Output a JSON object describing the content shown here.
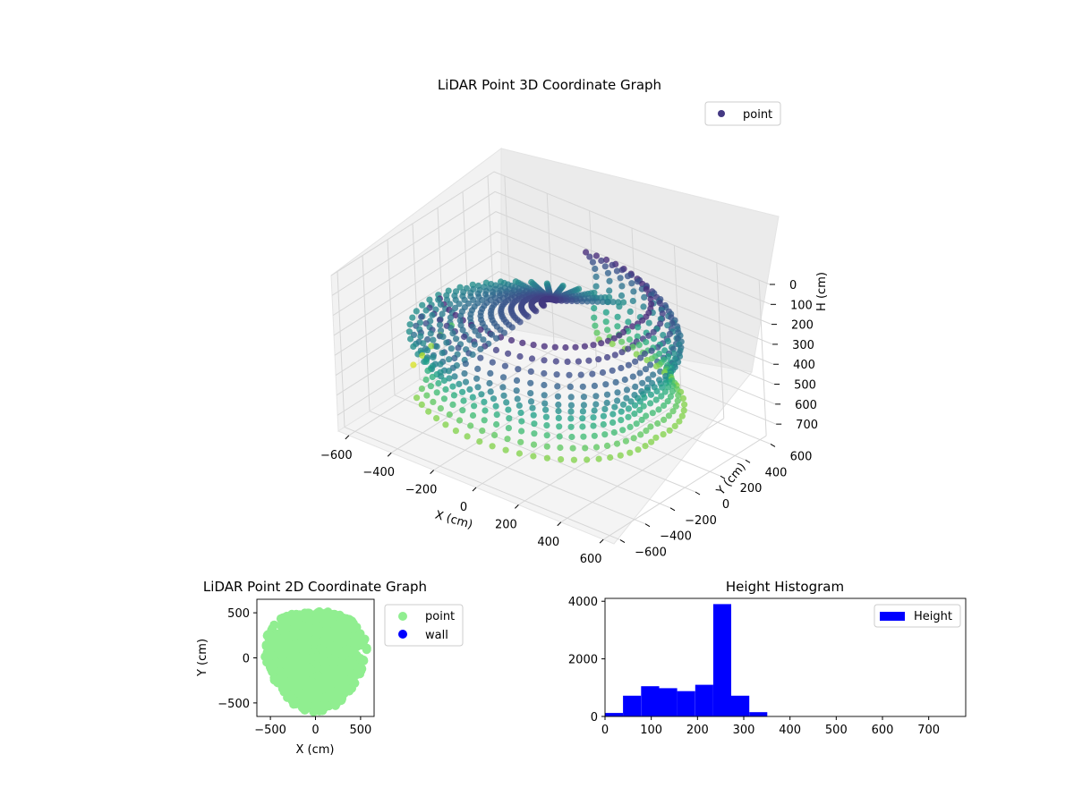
{
  "chart_data": [
    {
      "type": "scatter",
      "projection": "3d",
      "title": "LiDAR Point 3D Coordinate Graph",
      "xlabel": "X (cm)",
      "ylabel": "Y (cm)",
      "zlabel": "H (cm)",
      "xlim": [
        -650,
        650
      ],
      "ylim": [
        -650,
        650
      ],
      "zlim": [
        0,
        780
      ],
      "z_inverted": true,
      "xticks": [
        "−600",
        "−400",
        "−200",
        "0",
        "200",
        "400",
        "600"
      ],
      "yticks": [
        "−600",
        "−400",
        "−200",
        "0",
        "200",
        "400",
        "600"
      ],
      "zticks": [
        "0",
        "100",
        "200",
        "300",
        "400",
        "500",
        "600",
        "700"
      ],
      "grid": true,
      "legend": {
        "placement": "upper-right",
        "entries": [
          "point"
        ]
      },
      "colormap": "viridis",
      "series": [
        {
          "name": "point",
          "color": "#443983",
          "description_values": {
            "rings": 42,
            "ring_radius_range": [
              450,
              620
            ],
            "height_range": [
              0,
              720
            ]
          }
        }
      ]
    },
    {
      "type": "scatter",
      "title": "LiDAR Point 2D Coordinate Graph",
      "xlabel": "X (cm)",
      "ylabel": "Y (cm)",
      "xlim": [
        -650,
        650
      ],
      "ylim": [
        -650,
        650
      ],
      "xticks": [
        "−500",
        "0",
        "500"
      ],
      "yticks": [
        "−500",
        "0",
        "500"
      ],
      "legend": {
        "placement": "outside-right",
        "entries": [
          "point",
          "wall"
        ]
      },
      "series": [
        {
          "name": "point",
          "color": "#90ee90"
        },
        {
          "name": "wall",
          "color": "#0000ff"
        }
      ]
    },
    {
      "type": "bar",
      "subtype": "histogram",
      "title": "Height Histogram",
      "xlim": [
        0,
        780
      ],
      "ylim": [
        0,
        4100
      ],
      "xticks": [
        "0",
        "100",
        "200",
        "300",
        "400",
        "500",
        "600",
        "700"
      ],
      "yticks": [
        "0",
        "2000",
        "4000"
      ],
      "bin_width": 39,
      "bin_start": 0,
      "values": [
        120,
        720,
        1050,
        980,
        880,
        1100,
        3900,
        720,
        150,
        0,
        0,
        0,
        0,
        0,
        0,
        0,
        0,
        0,
        0,
        0
      ],
      "legend": {
        "placement": "upper-right",
        "entries": [
          "Height"
        ]
      },
      "series": [
        {
          "name": "Height",
          "color": "#0000ff"
        }
      ]
    }
  ]
}
